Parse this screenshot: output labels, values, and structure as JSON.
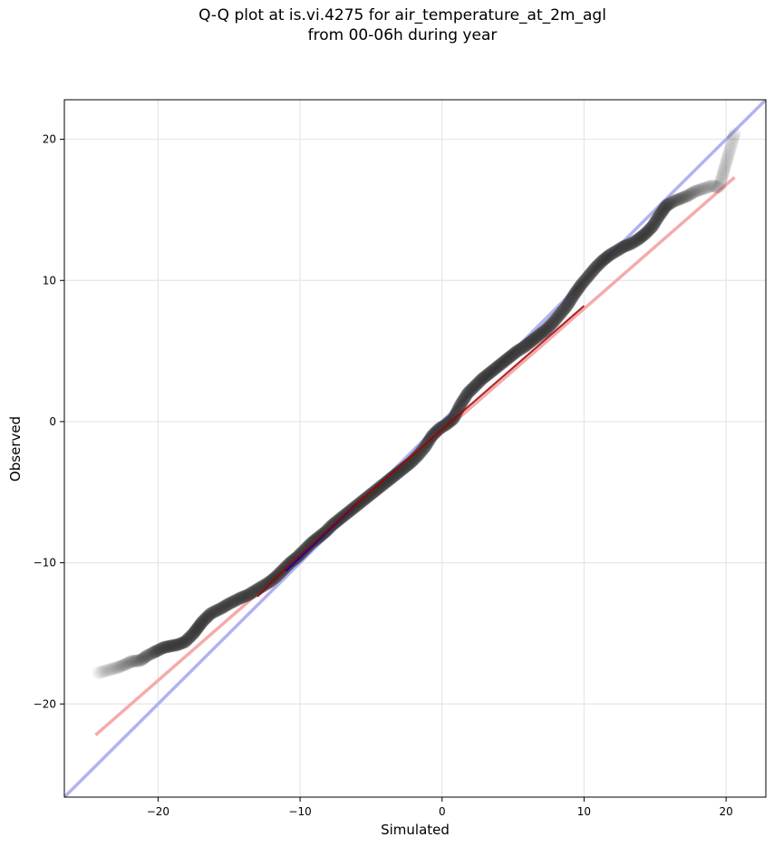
{
  "chart_data": {
    "type": "scatter",
    "title": [
      "Q-Q plot at is.vi.4275 for air_temperature_at_2m_agl",
      "from 00-06h during year"
    ],
    "xlabel": "Simulated",
    "ylabel": "Observed",
    "xlim": [
      -26.6,
      22.8
    ],
    "ylim": [
      -26.6,
      22.8
    ],
    "xticks": [
      -20,
      -10,
      0,
      10,
      20
    ],
    "xtick_labels": [
      "−20",
      "−10",
      "0",
      "10",
      "20"
    ],
    "yticks": [
      -20,
      -10,
      0,
      10,
      20
    ],
    "ytick_labels": [
      "−20",
      "−10",
      "0",
      "10",
      "20"
    ],
    "grid": true,
    "reference_line": {
      "name": "",
      "color": "#aaaaf0",
      "slope": 1,
      "intercept": 0
    },
    "fit_line": {
      "name": "",
      "color": "#f4a6a6",
      "x": [
        -24.4,
        20.6
      ],
      "y": [
        -22.2,
        17.3
      ]
    },
    "curve_lines": [
      {
        "color": "#0000cc",
        "x": [
          -11,
          -6
        ],
        "y": [
          -10.6,
          -5.8
        ]
      },
      {
        "color": "#a00000",
        "x": [
          -13,
          -11,
          -6,
          10
        ],
        "y": [
          -12.4,
          -10.4,
          -5.8,
          8.2
        ]
      }
    ],
    "points": {
      "color": "#303030",
      "x": [
        -24.2,
        -23.5,
        -22.8,
        -22.3,
        -21.9,
        -21.2,
        -20.8,
        -20.4,
        -20.0,
        -19.6,
        -19.1,
        -18.6,
        -18.1,
        -17.8,
        -17.5,
        -17.2,
        -16.9,
        -16.6,
        -16.3,
        -15.9,
        -15.5,
        -15.0,
        -14.6,
        -14.2,
        -13.7,
        -13.2,
        -12.7,
        -12.2,
        -11.7,
        -11.2,
        -10.7,
        -10.2,
        -9.7,
        -9.2,
        -8.7,
        -8.2,
        -7.7,
        -7.2,
        -6.7,
        -6.2,
        -5.7,
        -5.2,
        -4.7,
        -4.2,
        -3.7,
        -3.2,
        -2.7,
        -2.2,
        -1.7,
        -1.2,
        -0.7,
        -0.2,
        0.3,
        0.8,
        1.3,
        1.8,
        2.3,
        2.8,
        3.3,
        3.8,
        4.3,
        4.8,
        5.3,
        5.8,
        6.3,
        6.8,
        7.3,
        7.8,
        8.3,
        8.8,
        9.3,
        9.8,
        10.3,
        10.8,
        11.3,
        11.8,
        12.3,
        12.8,
        13.3,
        13.8,
        14.3,
        14.8,
        15.3,
        15.8,
        16.3,
        16.8,
        17.3,
        17.8,
        18.4,
        19.0,
        19.5,
        20.6
      ],
      "y": [
        -17.8,
        -17.6,
        -17.4,
        -17.2,
        -17.0,
        -16.9,
        -16.6,
        -16.4,
        -16.2,
        -16.0,
        -15.9,
        -15.8,
        -15.6,
        -15.3,
        -15.0,
        -14.6,
        -14.2,
        -13.9,
        -13.6,
        -13.4,
        -13.2,
        -12.9,
        -12.7,
        -12.5,
        -12.3,
        -12.0,
        -11.7,
        -11.4,
        -11.0,
        -10.5,
        -10.0,
        -9.6,
        -9.1,
        -8.6,
        -8.2,
        -7.8,
        -7.3,
        -6.9,
        -6.5,
        -6.1,
        -5.7,
        -5.3,
        -4.9,
        -4.5,
        -4.1,
        -3.7,
        -3.3,
        -2.9,
        -2.4,
        -1.8,
        -1.0,
        -0.5,
        -0.2,
        0.2,
        1.2,
        2.0,
        2.5,
        3.0,
        3.4,
        3.8,
        4.2,
        4.6,
        5.0,
        5.3,
        5.7,
        6.1,
        6.5,
        7.0,
        7.6,
        8.2,
        9.0,
        9.7,
        10.3,
        10.9,
        11.4,
        11.8,
        12.1,
        12.4,
        12.6,
        12.9,
        13.3,
        13.8,
        14.6,
        15.3,
        15.6,
        15.8,
        16.0,
        16.3,
        16.5,
        16.7,
        16.6,
        20.4
      ]
    }
  }
}
